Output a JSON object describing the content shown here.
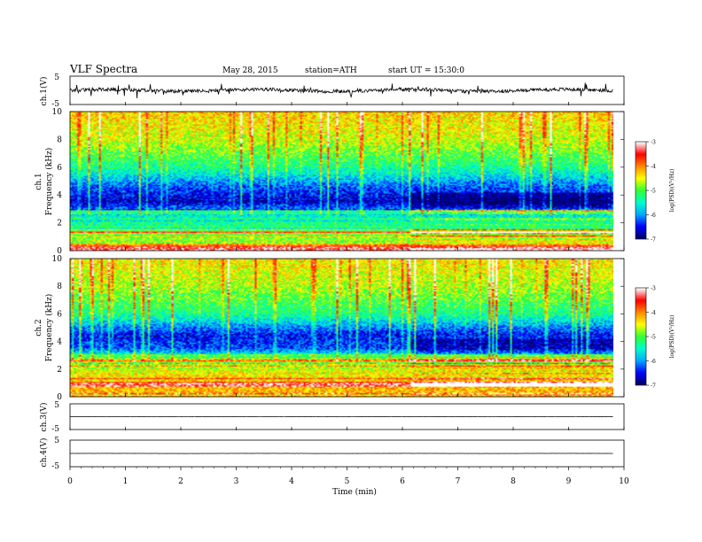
{
  "header": {
    "title": "VLF  Spectra",
    "date": "May 28, 2015",
    "station": "station=ATH",
    "start": "start  UT =   15:30:0"
  },
  "colors": {
    "colormap": [
      "#000066",
      "#0000ff",
      "#00aaff",
      "#00ffcc",
      "#33ff33",
      "#ffff00",
      "#ff8800",
      "#ff0000",
      "#ffffff"
    ]
  },
  "chart_data": [
    {
      "type": "line",
      "panel": "ch1",
      "ylabel": "ch.1(V)",
      "ylim": [
        -5,
        5
      ],
      "yticks": [
        "5",
        "-5"
      ],
      "xlim": [
        0,
        10
      ],
      "series": [
        {
          "name": "ch.1(V)",
          "baseline": 0,
          "amplitude": 1.2,
          "x_end": 9.8
        }
      ]
    },
    {
      "type": "heatmap",
      "panel": "ch1-spectrogram",
      "title_prefix": "ch.1",
      "ylabel": "Frequency  (kHz)",
      "ylim": [
        0,
        10
      ],
      "yticks": [
        "0",
        "2",
        "4",
        "6",
        "8",
        "10"
      ],
      "xlim": [
        0,
        10
      ],
      "data_x_end": 9.8,
      "colorbar": {
        "label": "log(PSD)(V²/Hz)",
        "range": [
          -7,
          -3
        ],
        "ticks": [
          "-3",
          "-4",
          "-5",
          "-6",
          "-7"
        ]
      },
      "band_profile": [
        {
          "f": 0.2,
          "level": -3.3
        },
        {
          "f": 0.5,
          "level": -4.5
        },
        {
          "f": 1.0,
          "level": -5.0
        },
        {
          "f": 2.0,
          "level": -5.3
        },
        {
          "f": 2.6,
          "level": -5.7
        },
        {
          "f": 3.5,
          "level": -6.7
        },
        {
          "f": 4.5,
          "level": -6.3
        },
        {
          "f": 6.0,
          "level": -5.3
        },
        {
          "f": 8.0,
          "level": -4.6
        },
        {
          "f": 10.0,
          "level": -4.3
        }
      ],
      "regime_change_min": 6.1
    },
    {
      "type": "heatmap",
      "panel": "ch2-spectrogram",
      "title_prefix": "ch.2",
      "ylabel": "Frequency  (kHz)",
      "ylim": [
        0,
        10
      ],
      "yticks": [
        "0",
        "2",
        "4",
        "6",
        "8",
        "10"
      ],
      "xlim": [
        0,
        10
      ],
      "data_x_end": 9.8,
      "colorbar": {
        "label": "log(PSD)(V²/Hz)",
        "range": [
          -7,
          -3
        ],
        "ticks": [
          "-3",
          "-4",
          "-5",
          "-6",
          "-7"
        ]
      },
      "band_profile": [
        {
          "f": 0.2,
          "level": -4.2
        },
        {
          "f": 1.0,
          "level": -4.2
        },
        {
          "f": 2.0,
          "level": -4.6
        },
        {
          "f": 2.8,
          "level": -5.2
        },
        {
          "f": 3.5,
          "level": -6.3
        },
        {
          "f": 4.5,
          "level": -6.5
        },
        {
          "f": 6.0,
          "level": -5.3
        },
        {
          "f": 8.0,
          "level": -4.7
        },
        {
          "f": 10.0,
          "level": -4.4
        }
      ],
      "regime_change_min": 6.1
    },
    {
      "type": "line",
      "panel": "ch3",
      "ylabel": "ch.3(V)",
      "ylim": [
        -5,
        5
      ],
      "yticks": [
        "5",
        "-5"
      ],
      "xlim": [
        0,
        10
      ],
      "series": [
        {
          "name": "ch.3(V)",
          "baseline": 0,
          "amplitude": 0.1,
          "x_end": 9.8
        }
      ]
    },
    {
      "type": "line",
      "panel": "ch4",
      "ylabel": "ch.4(V)",
      "ylim": [
        -5,
        5
      ],
      "yticks": [
        "5",
        "-5"
      ],
      "xlim": [
        0,
        10
      ],
      "series": [
        {
          "name": "ch.4(V)",
          "baseline": 0,
          "amplitude": 0.05,
          "x_end": 9.8
        }
      ]
    }
  ],
  "xaxis": {
    "label": "Time  (min)",
    "ticks": [
      "0",
      "1",
      "2",
      "3",
      "4",
      "5",
      "6",
      "7",
      "8",
      "9",
      "10"
    ]
  }
}
